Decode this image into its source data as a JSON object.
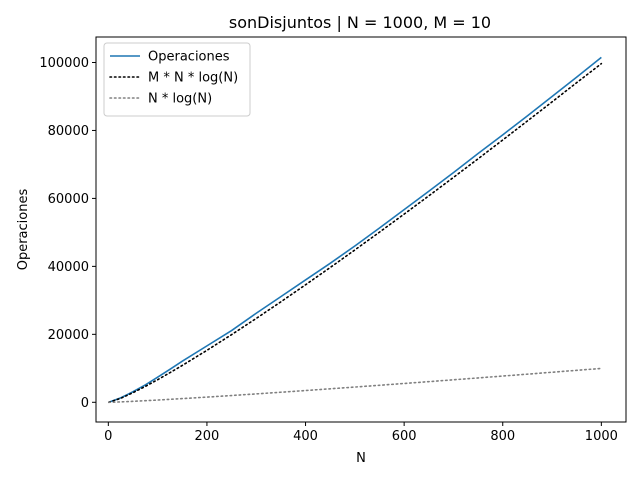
{
  "chart_data": {
    "type": "line",
    "title": "sonDisjuntos | N = 1000, M = 10",
    "xlabel": "N",
    "ylabel": "Operaciones",
    "xlim": [
      -25,
      1050
    ],
    "ylim": [
      -5800,
      107500
    ],
    "x_ticks": [
      0,
      200,
      400,
      600,
      800,
      1000
    ],
    "y_ticks": [
      0,
      20000,
      40000,
      60000,
      80000,
      100000
    ],
    "grid": false,
    "legend_position": "top-left",
    "x": [
      1,
      25,
      50,
      75,
      100,
      125,
      150,
      200,
      250,
      300,
      350,
      400,
      450,
      500,
      550,
      600,
      650,
      700,
      750,
      800,
      850,
      900,
      950,
      1000
    ],
    "series": [
      {
        "name": "Operaciones",
        "style": "solid",
        "color": "#1f77b4",
        "values": [
          10,
          1300,
          3100,
          5100,
          7400,
          9700,
          12100,
          16600,
          21100,
          26200,
          31100,
          36000,
          40900,
          46000,
          51300,
          56700,
          62100,
          67600,
          73200,
          78700,
          84300,
          90000,
          95700,
          101500
        ]
      },
      {
        "name": "M * N * log(N)",
        "style": "dotted",
        "color": "#000000",
        "values": [
          0,
          1160,
          2820,
          4670,
          6640,
          8720,
          10850,
          15290,
          19910,
          24680,
          29570,
          34580,
          39660,
          44830,
          50070,
          55380,
          60750,
          66180,
          71660,
          77200,
          82780,
          88400,
          94070,
          99660
        ]
      },
      {
        "name": "N * log(N)",
        "style": "dotted",
        "color": "#808080",
        "values": [
          0,
          116,
          282,
          467,
          664,
          872,
          1085,
          1529,
          1991,
          2468,
          2957,
          3458,
          3966,
          4483,
          5007,
          5538,
          6075,
          6618,
          7166,
          7720,
          8278,
          8840,
          9407,
          9966
        ]
      }
    ]
  }
}
